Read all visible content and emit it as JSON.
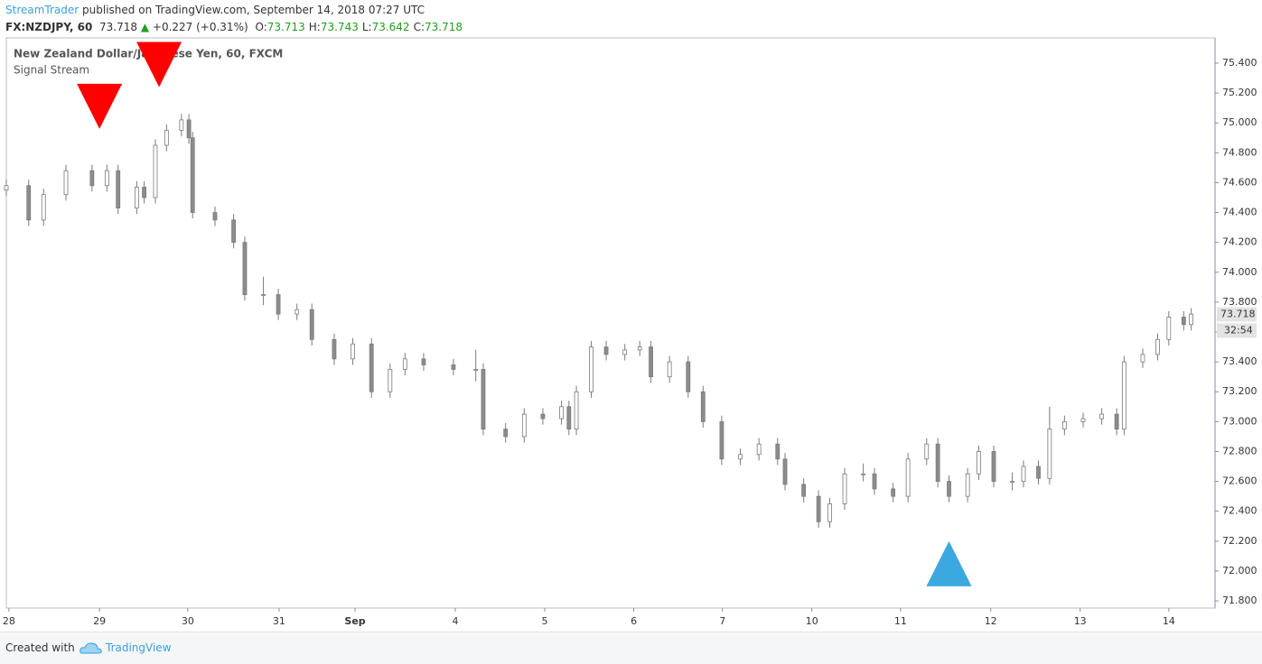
{
  "header": {
    "author": "StreamTrader",
    "published": "published on TradingView.com, September 14, 2018 07:27 UTC",
    "symbol": "FX:NZDJPY, 60",
    "price": "73.718",
    "arrow": "▲",
    "change": "+0.227 (+0.31%)",
    "ohlc": [
      {
        "label": "O:",
        "value": "73.713"
      },
      {
        "label": "H:",
        "value": "73.743"
      },
      {
        "label": "L:",
        "value": "73.642"
      },
      {
        "label": "C:",
        "value": "73.718"
      }
    ]
  },
  "chart_data": {
    "type": "candlestick",
    "title": "New Zealand Dollar/Japanese Yen, 60, FXCM",
    "subtitle": "Signal Stream",
    "up_color": "#ffffff",
    "down_color": "#8c8c8c",
    "wick_color": "#7a7a7a",
    "x": [
      0,
      6,
      10,
      16,
      23,
      27,
      30,
      35,
      37,
      40,
      43,
      47,
      49,
      50,
      56,
      61,
      64,
      69,
      73,
      78,
      82,
      88,
      93,
      98,
      103,
      107,
      112,
      120,
      126,
      128,
      134,
      139,
      144,
      149,
      151,
      153,
      157,
      161,
      166,
      170,
      173,
      178,
      183,
      187,
      192,
      197,
      202,
      207,
      209,
      214,
      218,
      221,
      225,
      230,
      233,
      238,
      242,
      247,
      250,
      253,
      258,
      261,
      265,
      270,
      273,
      277,
      280,
      284,
      289,
      294,
      298,
      300,
      305,
      309,
      312,
      316,
      318
    ],
    "open": [
      74.55,
      74.58,
      74.35,
      74.52,
      74.68,
      74.58,
      74.68,
      74.43,
      74.57,
      74.5,
      74.85,
      74.95,
      75.02,
      74.9,
      74.4,
      74.35,
      74.2,
      73.85,
      73.85,
      73.72,
      73.75,
      73.55,
      73.42,
      73.52,
      73.2,
      73.35,
      73.42,
      73.38,
      73.35,
      73.35,
      72.95,
      72.9,
      73.05,
      73.02,
      73.1,
      72.95,
      73.2,
      73.5,
      73.45,
      73.48,
      73.5,
      73.3,
      73.4,
      73.2,
      73.0,
      72.75,
      72.78,
      72.85,
      72.75,
      72.58,
      72.5,
      72.33,
      72.45,
      72.65,
      72.65,
      72.55,
      72.5,
      72.75,
      72.85,
      72.6,
      72.5,
      72.65,
      72.8,
      72.6,
      72.6,
      72.7,
      72.62,
      72.95,
      73.0,
      73.02,
      73.05,
      72.95,
      73.4,
      73.45,
      73.55,
      73.7,
      73.65
    ],
    "high": [
      74.62,
      74.62,
      74.56,
      74.72,
      74.72,
      74.72,
      74.72,
      74.61,
      74.61,
      74.89,
      74.99,
      75.06,
      75.06,
      74.94,
      74.44,
      74.39,
      74.24,
      73.97,
      73.89,
      73.79,
      73.79,
      73.59,
      73.56,
      73.56,
      73.39,
      73.46,
      73.46,
      73.42,
      73.48,
      73.39,
      72.99,
      73.09,
      73.09,
      73.14,
      73.14,
      73.24,
      73.54,
      73.54,
      73.52,
      73.54,
      73.54,
      73.44,
      73.44,
      73.24,
      73.04,
      72.82,
      72.89,
      72.89,
      72.79,
      72.62,
      72.54,
      72.49,
      72.69,
      72.72,
      72.69,
      72.59,
      72.79,
      72.89,
      72.89,
      72.64,
      72.69,
      72.84,
      72.84,
      72.66,
      72.74,
      72.74,
      73.1,
      73.04,
      73.06,
      73.09,
      73.09,
      73.44,
      73.49,
      73.59,
      73.74,
      73.74,
      73.76
    ],
    "low": [
      74.51,
      74.31,
      74.31,
      74.48,
      74.54,
      74.54,
      74.39,
      74.39,
      74.46,
      74.46,
      74.81,
      74.91,
      74.86,
      74.36,
      74.31,
      74.16,
      73.81,
      73.78,
      73.68,
      73.68,
      73.51,
      73.38,
      73.38,
      73.16,
      73.16,
      73.31,
      73.34,
      73.31,
      73.27,
      72.91,
      72.86,
      72.86,
      72.98,
      72.98,
      72.91,
      72.91,
      73.16,
      73.41,
      73.41,
      73.44,
      73.26,
      73.26,
      73.16,
      72.96,
      72.71,
      72.71,
      72.74,
      72.71,
      72.54,
      72.46,
      72.29,
      72.29,
      72.41,
      72.6,
      72.51,
      72.46,
      72.46,
      72.71,
      72.56,
      72.46,
      72.46,
      72.61,
      72.56,
      72.54,
      72.56,
      72.58,
      72.58,
      72.91,
      72.96,
      72.98,
      72.91,
      72.91,
      73.36,
      73.41,
      73.51,
      73.61,
      73.61
    ],
    "close": [
      74.58,
      74.35,
      74.52,
      74.68,
      74.58,
      74.68,
      74.43,
      74.57,
      74.5,
      74.85,
      74.95,
      75.02,
      74.9,
      74.4,
      74.35,
      74.2,
      73.85,
      73.85,
      73.72,
      73.75,
      73.55,
      73.42,
      73.52,
      73.2,
      73.35,
      73.42,
      73.38,
      73.35,
      73.35,
      72.95,
      72.9,
      73.05,
      73.02,
      73.1,
      72.95,
      73.2,
      73.5,
      73.45,
      73.48,
      73.5,
      73.3,
      73.4,
      73.2,
      73.0,
      72.75,
      72.78,
      72.85,
      72.75,
      72.58,
      72.5,
      72.33,
      72.45,
      72.65,
      72.65,
      72.55,
      72.5,
      72.75,
      72.85,
      72.6,
      72.5,
      72.65,
      72.8,
      72.6,
      72.6,
      72.7,
      72.62,
      72.95,
      73.0,
      73.02,
      73.05,
      72.95,
      73.4,
      73.45,
      73.55,
      73.7,
      73.65,
      73.72
    ],
    "sell_signals": {
      "color": "#ff0000",
      "x": [
        25,
        41
      ],
      "y": [
        74.96,
        75.24
      ]
    },
    "buy_signals": {
      "color": "#3ba8e0",
      "x": [
        253
      ],
      "y": [
        72.2
      ]
    },
    "last_price": {
      "value": 73.718,
      "label": "73.718"
    },
    "countdown": "32:54",
    "xlim": [
      0,
      324.4
    ],
    "ylim": [
      71.752,
      75.569
    ],
    "xticks": [
      {
        "value": 0.7,
        "label": "28"
      },
      {
        "value": 25,
        "label": "29"
      },
      {
        "value": 48.7,
        "label": "30"
      },
      {
        "value": 73.2,
        "label": "31"
      },
      {
        "value": 93.6,
        "label": "Sep"
      },
      {
        "value": 120.5,
        "label": "4"
      },
      {
        "value": 144.5,
        "label": "5"
      },
      {
        "value": 168.4,
        "label": "6"
      },
      {
        "value": 192.2,
        "label": "7"
      },
      {
        "value": 216.2,
        "label": "10"
      },
      {
        "value": 240,
        "label": "11"
      },
      {
        "value": 264.2,
        "label": "12"
      },
      {
        "value": 288.2,
        "label": "13"
      },
      {
        "value": 312,
        "label": "14"
      }
    ],
    "yticks": [
      {
        "value": 71.8,
        "label": "71.800"
      },
      {
        "value": 72.0,
        "label": "72.000"
      },
      {
        "value": 72.2,
        "label": "72.200"
      },
      {
        "value": 72.4,
        "label": "72.400"
      },
      {
        "value": 72.6,
        "label": "72.600"
      },
      {
        "value": 72.8,
        "label": "72.800"
      },
      {
        "value": 73.0,
        "label": "73.000"
      },
      {
        "value": 73.2,
        "label": "73.200"
      },
      {
        "value": 73.4,
        "label": "73.400"
      },
      {
        "value": 73.6,
        "label": "73.600"
      },
      {
        "value": 73.8,
        "label": "73.800"
      },
      {
        "value": 74.0,
        "label": "74.000"
      },
      {
        "value": 74.2,
        "label": "74.200"
      },
      {
        "value": 74.4,
        "label": "74.400"
      },
      {
        "value": 74.6,
        "label": "74.600"
      },
      {
        "value": 74.8,
        "label": "74.800"
      },
      {
        "value": 75.0,
        "label": "75.000"
      },
      {
        "value": 75.2,
        "label": "75.200"
      },
      {
        "value": 75.4,
        "label": "75.400"
      }
    ]
  },
  "footer": {
    "created": "Created with",
    "brand": "TradingView"
  }
}
